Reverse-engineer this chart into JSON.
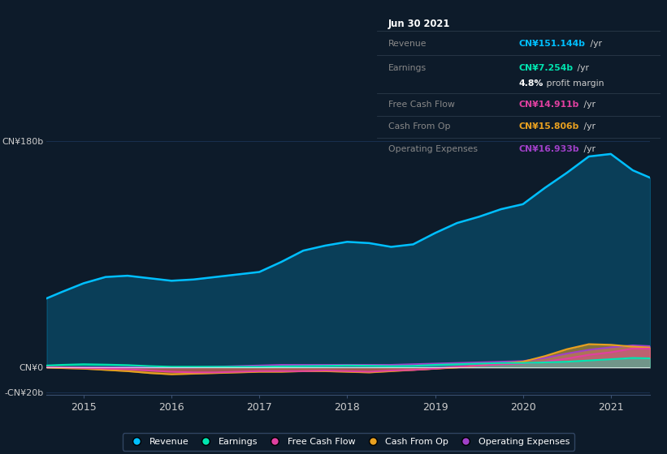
{
  "bg_color": "#0d1b2a",
  "plot_bg_color": "#0d1b2a",
  "grid_color": "#1e3a5f",
  "title_date": "Jun 30 2021",
  "tooltip_revenue_label": "Revenue",
  "tooltip_revenue_value": "CN¥151.144b",
  "tooltip_revenue_color": "#00bfff",
  "tooltip_earnings_label": "Earnings",
  "tooltip_earnings_value": "CN¥7.254b",
  "tooltip_earnings_color": "#00e5b0",
  "tooltip_pm": "4.8%",
  "tooltip_pm_text": " profit margin",
  "tooltip_fcf_label": "Free Cash Flow",
  "tooltip_fcf_value": "CN¥14.911b",
  "tooltip_fcf_color": "#e040a0",
  "tooltip_cop_label": "Cash From Op",
  "tooltip_cop_value": "CN¥15.806b",
  "tooltip_cop_color": "#e8a020",
  "tooltip_opex_label": "Operating Expenses",
  "tooltip_opex_value": "CN¥16.933b",
  "tooltip_opex_color": "#a040c8",
  "ylim_min": -22,
  "ylim_max": 195,
  "revenue_color": "#00bfff",
  "earnings_color": "#00e5b0",
  "fcf_color": "#e040a0",
  "cash_op_color": "#e8a020",
  "opex_color": "#a040c8",
  "legend_labels": [
    "Revenue",
    "Earnings",
    "Free Cash Flow",
    "Cash From Op",
    "Operating Expenses"
  ],
  "legend_colors": [
    "#00bfff",
    "#00e5b0",
    "#e040a0",
    "#e8a020",
    "#a040c8"
  ],
  "x_years": [
    2014.58,
    2014.75,
    2015.0,
    2015.25,
    2015.5,
    2015.75,
    2016.0,
    2016.25,
    2016.5,
    2016.75,
    2017.0,
    2017.25,
    2017.5,
    2017.75,
    2018.0,
    2018.25,
    2018.5,
    2018.75,
    2019.0,
    2019.25,
    2019.5,
    2019.75,
    2020.0,
    2020.25,
    2020.5,
    2020.75,
    2021.0,
    2021.25,
    2021.45
  ],
  "revenue": [
    55,
    60,
    67,
    72,
    73,
    71,
    69,
    70,
    72,
    74,
    76,
    84,
    93,
    97,
    100,
    99,
    96,
    98,
    107,
    115,
    120,
    126,
    130,
    143,
    155,
    168,
    170,
    157,
    151
  ],
  "earnings": [
    1.5,
    2.0,
    2.5,
    2.2,
    1.8,
    1.0,
    0.5,
    0.5,
    0.5,
    0.5,
    0.5,
    0.8,
    1.0,
    1.2,
    1.5,
    1.3,
    1.0,
    1.2,
    2.0,
    2.5,
    3.0,
    3.5,
    3.5,
    4.0,
    4.5,
    5.5,
    6.5,
    7.5,
    7.2
  ],
  "fcf": [
    0.5,
    0.0,
    -0.5,
    -1.0,
    -1.5,
    -2.5,
    -3.5,
    -4.0,
    -4.0,
    -3.5,
    -3.0,
    -3.0,
    -3.0,
    -2.5,
    -3.0,
    -3.5,
    -2.5,
    -2.0,
    -1.0,
    0.5,
    1.5,
    2.5,
    3.0,
    4.5,
    7.0,
    10.0,
    12.0,
    15.0,
    14.9
  ],
  "cash_op": [
    0.0,
    -0.5,
    -1.0,
    -2.0,
    -3.0,
    -4.5,
    -5.5,
    -5.0,
    -4.5,
    -4.0,
    -3.5,
    -3.5,
    -3.0,
    -3.0,
    -3.5,
    -4.0,
    -3.0,
    -2.0,
    -1.0,
    0.0,
    1.5,
    3.0,
    4.5,
    9.0,
    14.5,
    18.5,
    18.0,
    16.5,
    15.8
  ],
  "opex": [
    0.0,
    0.0,
    0.0,
    0.0,
    0.0,
    0.0,
    0.0,
    0.0,
    0.5,
    1.0,
    1.5,
    2.0,
    2.0,
    2.0,
    2.0,
    2.0,
    2.0,
    2.5,
    3.0,
    3.5,
    4.0,
    4.5,
    5.0,
    7.5,
    11.0,
    14.0,
    16.0,
    17.5,
    16.9
  ],
  "xtick_labels": [
    "2015",
    "2016",
    "2017",
    "2018",
    "2019",
    "2020",
    "2021"
  ],
  "xtick_positions": [
    2015,
    2016,
    2017,
    2018,
    2019,
    2020,
    2021
  ]
}
